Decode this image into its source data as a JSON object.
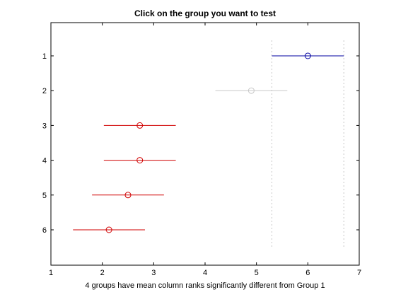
{
  "chart_data": {
    "type": "multiple-comparison-interval",
    "title": "Click on the group you want to test",
    "xlabel": "4 groups have mean column ranks significantly different from Group 1",
    "ylabel": "",
    "xlim": [
      1,
      7
    ],
    "x_ticks": [
      "1",
      "2",
      "3",
      "4",
      "5",
      "6",
      "7"
    ],
    "y_ticks": [
      "1",
      "2",
      "3",
      "4",
      "5",
      "6"
    ],
    "selected_group": 1,
    "reference_lines": [
      5.3,
      6.7
    ],
    "groups": [
      {
        "label": "1",
        "mean": 6.0,
        "low": 5.3,
        "high": 6.7,
        "status": "selected"
      },
      {
        "label": "2",
        "mean": 4.9,
        "low": 4.2,
        "high": 5.6,
        "status": "not-significant"
      },
      {
        "label": "3",
        "mean": 2.73,
        "low": 2.03,
        "high": 3.43,
        "status": "significant"
      },
      {
        "label": "4",
        "mean": 2.73,
        "low": 2.03,
        "high": 3.43,
        "status": "significant"
      },
      {
        "label": "5",
        "mean": 2.5,
        "low": 1.8,
        "high": 3.2,
        "status": "significant"
      },
      {
        "label": "6",
        "mean": 2.13,
        "low": 1.43,
        "high": 2.83,
        "status": "significant"
      }
    ],
    "colors": {
      "selected": "#0000a0",
      "not-significant": "#c8c8c8",
      "significant": "#d00000",
      "reference": "#c8c8c8",
      "axes": "#000000"
    }
  }
}
